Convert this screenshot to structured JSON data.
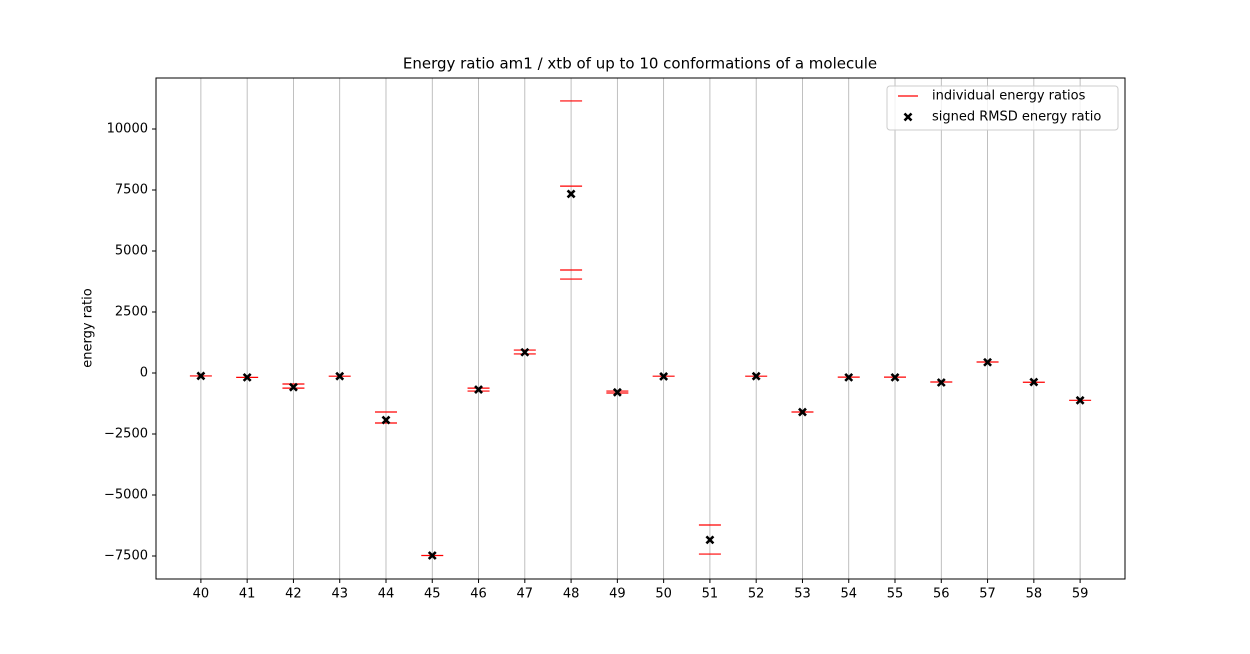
{
  "chart_data": {
    "type": "scatter",
    "title": "Energy ratio am1 / xtb of up to 10 conformations of a molecule",
    "y_label": "energy ratio",
    "x": [
      40,
      41,
      42,
      43,
      44,
      45,
      46,
      47,
      48,
      49,
      50,
      51,
      52,
      53,
      54,
      55,
      56,
      57,
      58,
      59
    ],
    "series": [
      {
        "name": "individual energy ratios",
        "color": "#ff0000",
        "marker": "hline",
        "values": [
          [
            -120
          ],
          [
            -180
          ],
          [
            -450,
            -620
          ],
          [
            -130
          ],
          [
            -1600,
            -2050
          ],
          [
            -7480
          ],
          [
            -620,
            -740
          ],
          [
            940,
            780
          ],
          [
            11150,
            7660,
            4220,
            3850
          ],
          [
            -740,
            -820
          ],
          [
            -130
          ],
          [
            -6230,
            -7420
          ],
          [
            -130
          ],
          [
            -1600
          ],
          [
            -170
          ],
          [
            -170
          ],
          [
            -370
          ],
          [
            450
          ],
          [
            -380
          ],
          [
            -1120
          ]
        ]
      },
      {
        "name": "signed RMSD energy ratio",
        "color": "#000000",
        "marker": "x",
        "values": [
          -120,
          -180,
          -580,
          -130,
          -1930,
          -7480,
          -680,
          850,
          7340,
          -790,
          -140,
          -6840,
          -130,
          -1600,
          -180,
          -180,
          -390,
          440,
          -370,
          -1120
        ]
      }
    ],
    "xlim": [
      39.03,
      59.97
    ],
    "xticks": [
      40,
      41,
      42,
      43,
      44,
      45,
      46,
      47,
      48,
      49,
      50,
      51,
      52,
      53,
      54,
      55,
      56,
      57,
      58,
      59
    ],
    "ylim": [
      -8443,
      12090
    ],
    "yticks": [
      {
        "value": -7500,
        "label": "−7500"
      },
      {
        "value": -5000,
        "label": "−5000"
      },
      {
        "value": -2500,
        "label": "−2500"
      },
      0,
      2500,
      5000,
      7500,
      10000
    ],
    "grid": "x",
    "legend": "upper right"
  }
}
